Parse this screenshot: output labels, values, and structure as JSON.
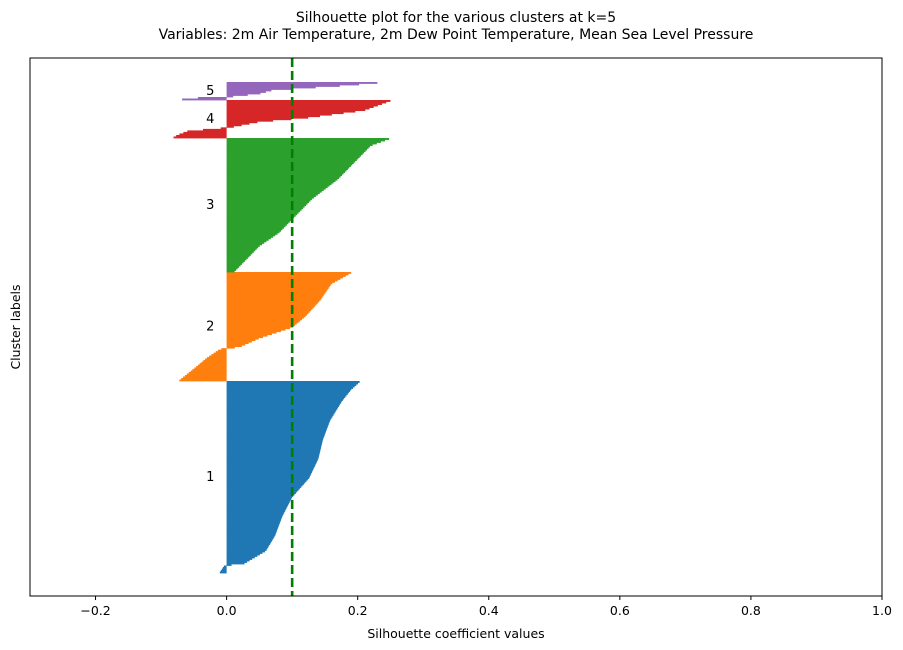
{
  "chart_data": {
    "type": "bar",
    "orientation": "horizontal",
    "title": "Silhouette plot for the various clusters at k=5",
    "subtitle": "Variables: 2m Air Temperature, 2m Dew Point Temperature, Mean Sea Level Pressure",
    "xlabel": "Silhouette coefficient values",
    "ylabel": "Cluster labels",
    "xlim": [
      -0.3,
      1.0
    ],
    "xticks": [
      -0.2,
      0.0,
      0.2,
      0.4,
      0.6,
      0.8,
      1.0
    ],
    "xtick_labels": [
      "−0.2",
      "0.0",
      "0.2",
      "0.4",
      "0.6",
      "0.8",
      "1.0"
    ],
    "average_silhouette": 0.1,
    "average_line_color": "#008000",
    "clusters": [
      {
        "label": "1",
        "color": "#1f77b4",
        "profile": [
          [
            0.0,
            0.203
          ],
          [
            0.04,
            0.19
          ],
          [
            0.1,
            0.176
          ],
          [
            0.2,
            0.158
          ],
          [
            0.3,
            0.147
          ],
          [
            0.4,
            0.14
          ],
          [
            0.5,
            0.126
          ],
          [
            0.6,
            0.1
          ],
          [
            0.7,
            0.085
          ],
          [
            0.8,
            0.074
          ],
          [
            0.88,
            0.06
          ],
          [
            0.95,
            0.025
          ],
          [
            0.955,
            -0.003
          ],
          [
            1.0,
            -0.012
          ]
        ]
      },
      {
        "label": "2",
        "color": "#ff7f0e",
        "profile": [
          [
            0.0,
            0.19
          ],
          [
            0.1,
            0.16
          ],
          [
            0.25,
            0.143
          ],
          [
            0.4,
            0.12
          ],
          [
            0.5,
            0.1
          ],
          [
            0.6,
            0.05
          ],
          [
            0.68,
            0.02
          ],
          [
            0.7,
            -0.01
          ],
          [
            0.78,
            -0.03
          ],
          [
            0.88,
            -0.05
          ],
          [
            1.0,
            -0.075
          ]
        ]
      },
      {
        "label": "3",
        "color": "#2ca02c",
        "profile": [
          [
            0.0,
            0.248
          ],
          [
            0.05,
            0.22
          ],
          [
            0.15,
            0.2
          ],
          [
            0.3,
            0.17
          ],
          [
            0.45,
            0.13
          ],
          [
            0.55,
            0.11
          ],
          [
            0.7,
            0.08
          ],
          [
            0.8,
            0.05
          ],
          [
            0.9,
            0.03
          ],
          [
            1.0,
            0.01
          ]
        ]
      },
      {
        "label": "4",
        "color": "#d62728",
        "profile": [
          [
            0.0,
            0.25
          ],
          [
            0.25,
            0.21
          ],
          [
            0.45,
            0.12
          ],
          [
            0.55,
            0.05
          ],
          [
            0.7,
            0.005
          ],
          [
            0.75,
            -0.03
          ],
          [
            0.8,
            -0.06
          ],
          [
            0.9,
            -0.075
          ],
          [
            1.0,
            -0.085
          ]
        ]
      },
      {
        "label": "5",
        "color": "#9467bd",
        "profile": [
          [
            0.0,
            0.23
          ],
          [
            0.15,
            0.18
          ],
          [
            0.4,
            0.07
          ],
          [
            0.6,
            0.05
          ],
          [
            0.75,
            0.01
          ],
          [
            0.82,
            -0.04
          ],
          [
            1.0,
            -0.092
          ]
        ]
      }
    ]
  }
}
